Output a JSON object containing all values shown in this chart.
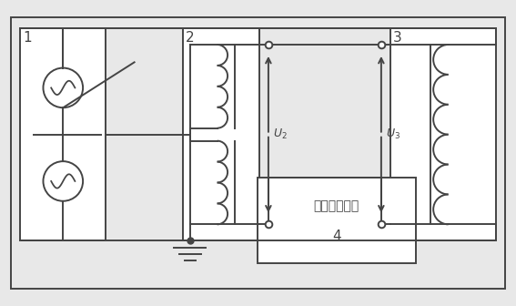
{
  "background_color": "#ffffff",
  "fig_bg": "#e8e8e8",
  "lc": "#444444",
  "lw": 1.4,
  "label1": "1",
  "label2": "2",
  "label3": "3",
  "label4": "4",
  "u2_label": "$U_2$",
  "u3_label": "$U_3$",
  "error_text": "误差测量装置"
}
